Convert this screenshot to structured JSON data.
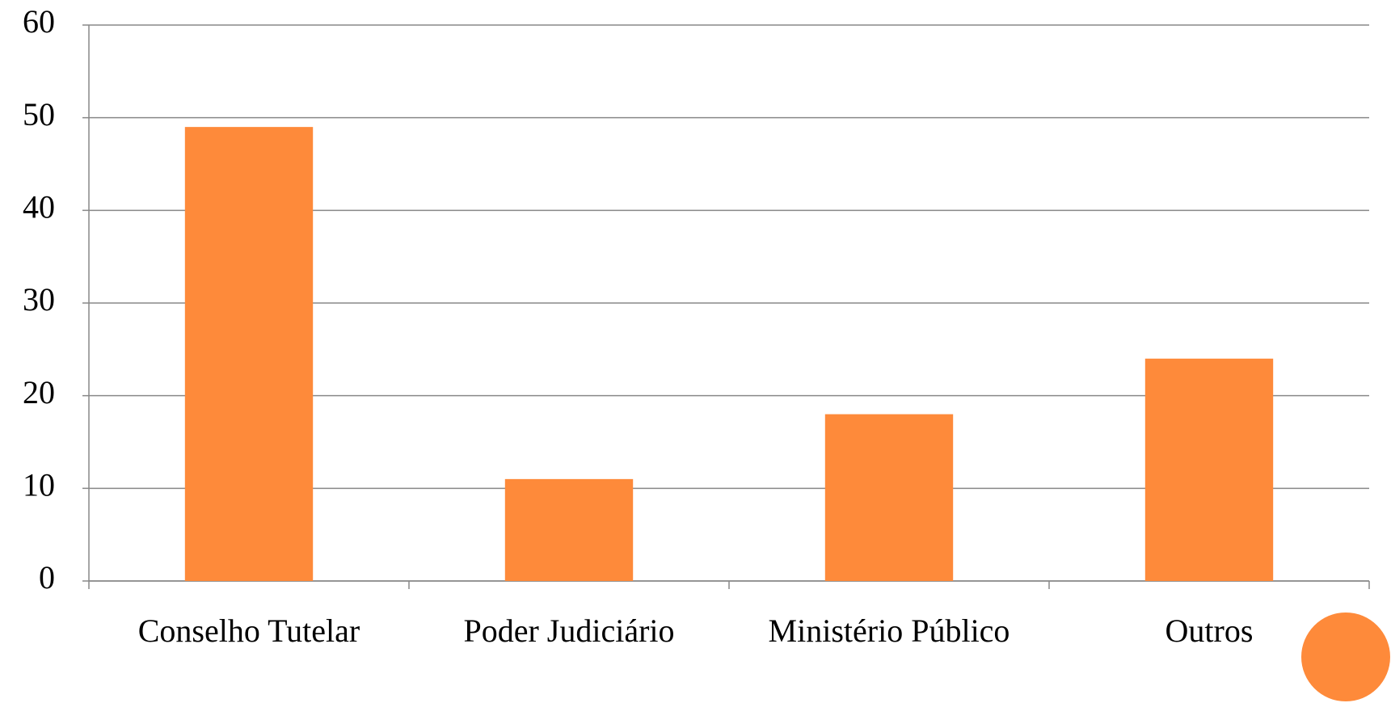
{
  "chart_data": {
    "type": "bar",
    "categories": [
      "Conselho Tutelar",
      "Poder Judiciário",
      "Ministério Público",
      "Outros"
    ],
    "values": [
      49,
      11,
      18,
      24
    ],
    "color": "#fe8a3a",
    "ylim": [
      0,
      60
    ],
    "yticks": [
      0,
      10,
      20,
      30,
      40,
      50,
      60
    ],
    "grid": true
  }
}
